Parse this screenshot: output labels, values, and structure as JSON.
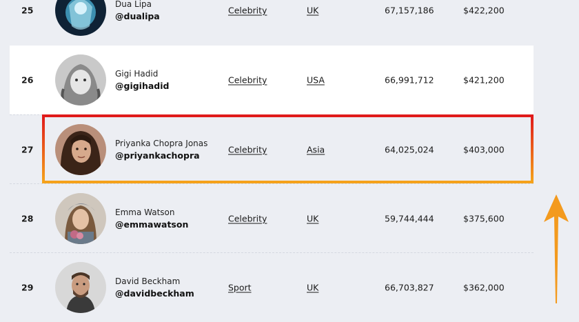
{
  "rows": [
    {
      "rank": "25",
      "name": "Dua Lipa",
      "handle": "@dualipa",
      "category": "Celebrity",
      "country": "UK",
      "followers": "67,157,186",
      "price": "$422,200",
      "avatar": "avatar-dua-lipa"
    },
    {
      "rank": "26",
      "name": "Gigi Hadid",
      "handle": "@gigihadid",
      "category": "Celebrity",
      "country": "USA",
      "followers": "66,991,712",
      "price": "$421,200",
      "avatar": "avatar-gigi-hadid"
    },
    {
      "rank": "27",
      "name": "Priyanka Chopra Jonas",
      "handle": "@priyankachopra",
      "category": "Celebrity",
      "country": "Asia",
      "followers": "64,025,024",
      "price": "$403,000",
      "avatar": "avatar-priyanka-chopra"
    },
    {
      "rank": "28",
      "name": "Emma Watson",
      "handle": "@emmawatson",
      "category": "Celebrity",
      "country": "UK",
      "followers": "59,744,444",
      "price": "$375,600",
      "avatar": "avatar-emma-watson"
    },
    {
      "rank": "29",
      "name": "David Beckham",
      "handle": "@davidbeckham",
      "category": "Sport",
      "country": "UK",
      "followers": "66,703,827",
      "price": "$362,000",
      "avatar": "avatar-david-beckham"
    }
  ],
  "highlight": {
    "color_top": "#e01a1a",
    "color_bottom": "#f5a21a"
  },
  "arrow": {
    "color": "#f39a1e",
    "icon": "up-arrow-icon"
  }
}
